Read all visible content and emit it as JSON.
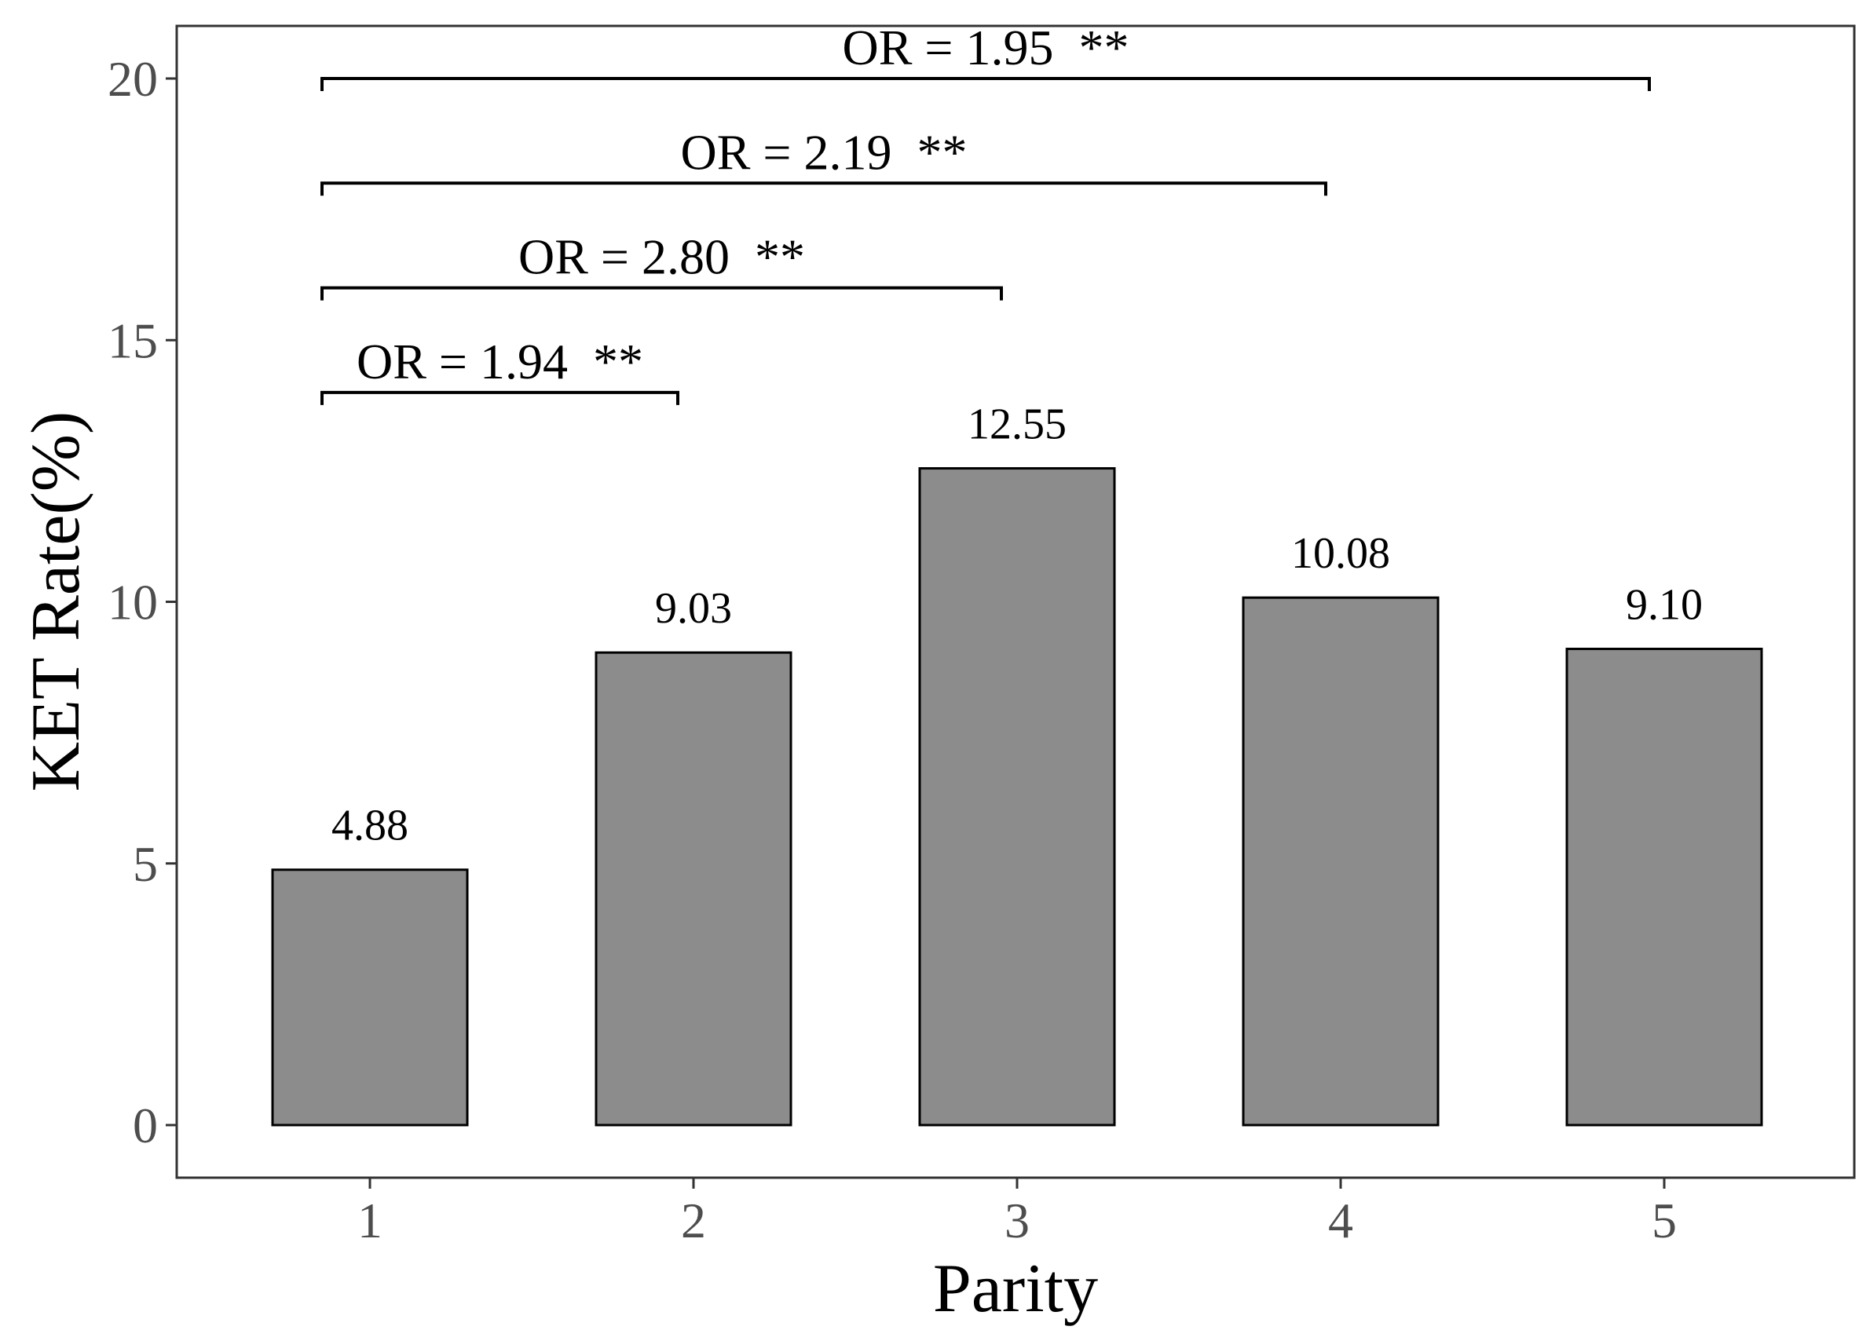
{
  "chart_data": {
    "type": "bar",
    "categories": [
      "1",
      "2",
      "3",
      "4",
      "5"
    ],
    "values": [
      4.88,
      9.03,
      12.55,
      10.08,
      9.1
    ],
    "value_labels": [
      "4.88",
      "9.03",
      "12.55",
      "10.08",
      "9.10"
    ],
    "xlabel": "Parity",
    "ylabel": "KET Rate(%)",
    "ylim": [
      0,
      21
    ],
    "yticks": [
      0,
      5,
      10,
      15,
      20
    ],
    "ytick_labels": [
      "0",
      "5",
      "10",
      "15",
      "20"
    ],
    "grid": false,
    "bar_color": "#8c8c8c",
    "comparisons": [
      {
        "from": "1",
        "to": "2",
        "y": 14,
        "label": "OR = 1.94  **"
      },
      {
        "from": "1",
        "to": "3",
        "y": 16,
        "label": "OR = 2.80  **"
      },
      {
        "from": "1",
        "to": "4",
        "y": 18,
        "label": "OR = 2.19  **"
      },
      {
        "from": "1",
        "to": "5",
        "y": 20,
        "label": "OR = 1.95  **"
      }
    ]
  }
}
